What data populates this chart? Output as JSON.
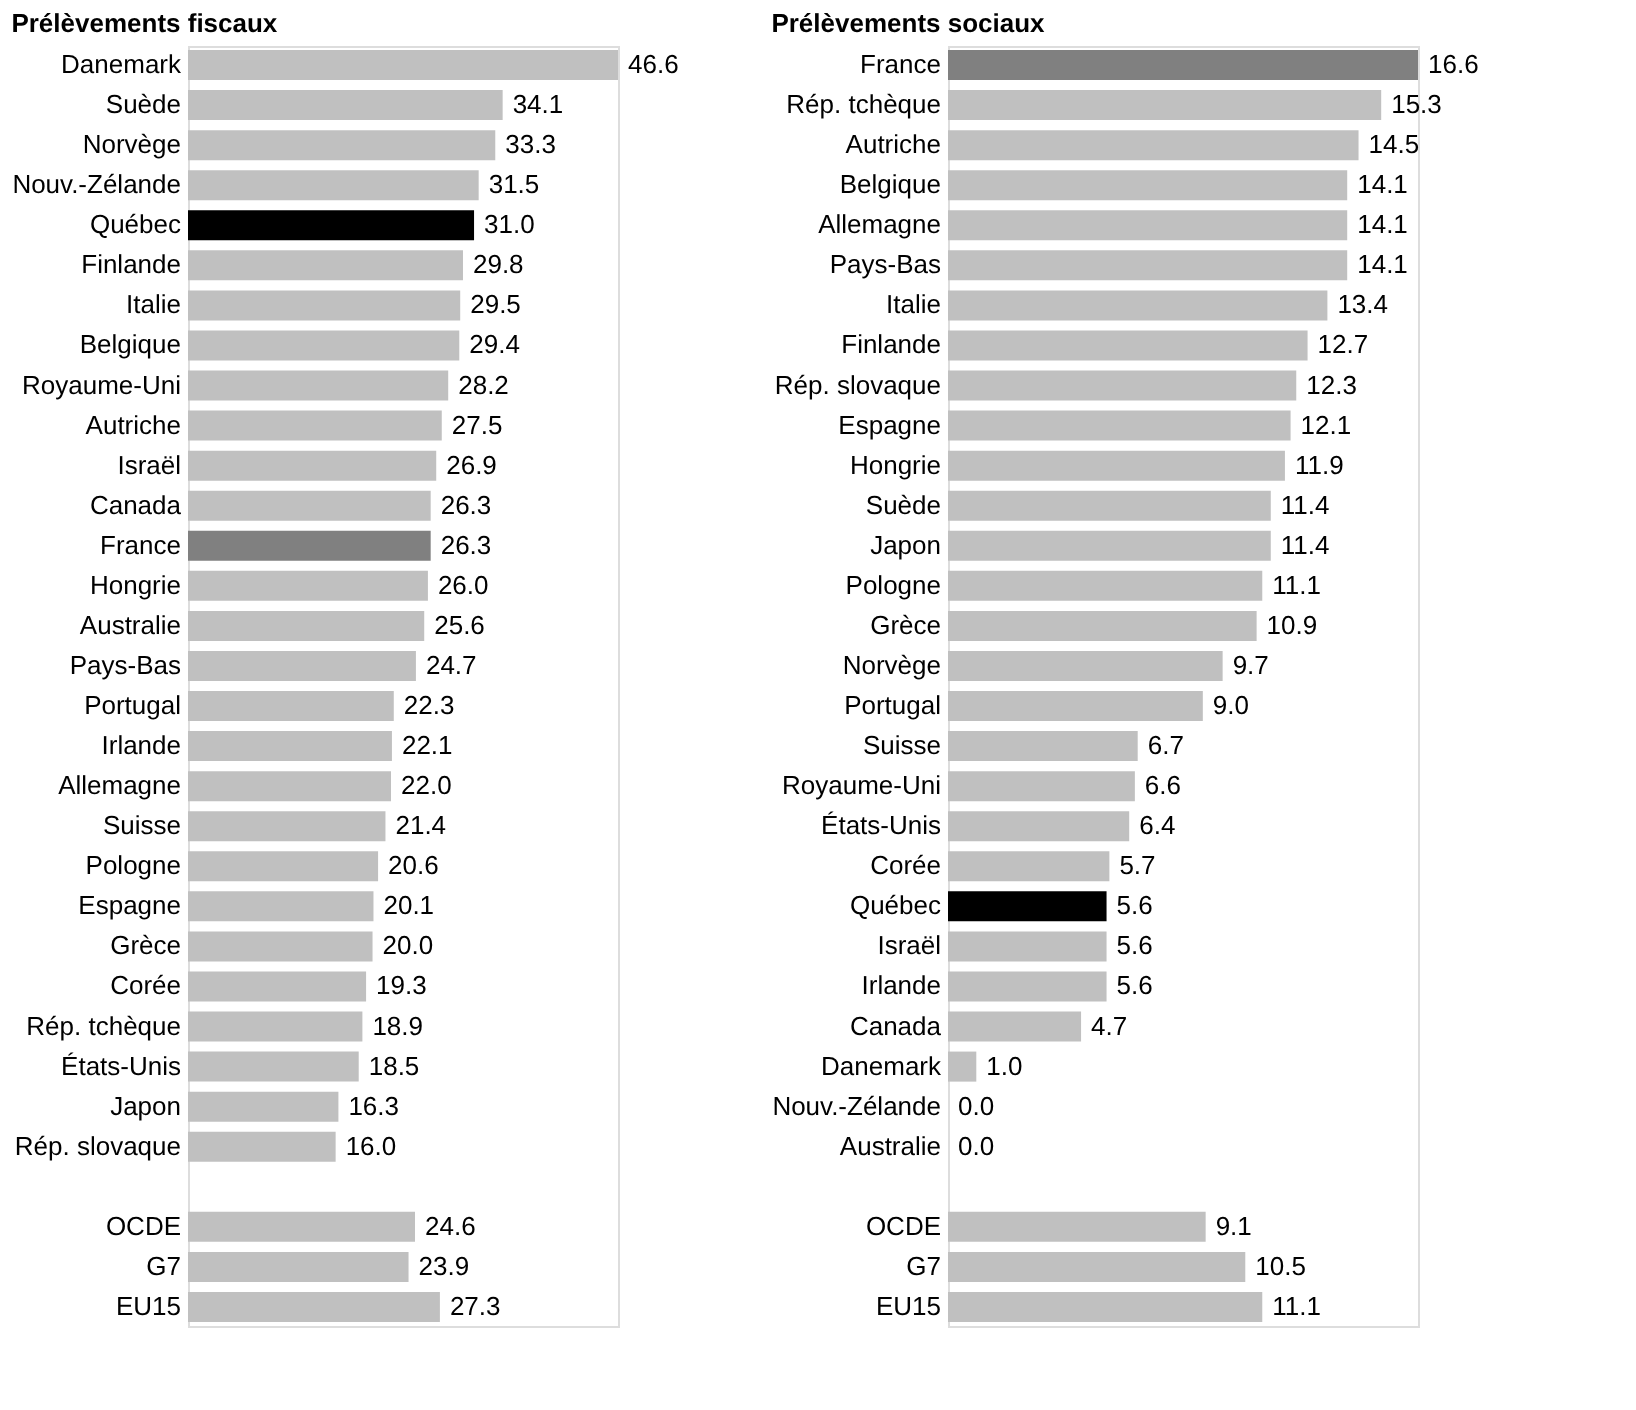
{
  "chart_data": [
    {
      "type": "bar",
      "orientation": "horizontal",
      "title": "Prélèvements fiscaux",
      "categories": [
        "Danemark",
        "Suède",
        "Norvège",
        "Nouv.-Zélande",
        "Québec",
        "Finlande",
        "Italie",
        "Belgique",
        "Royaume-Uni",
        "Autriche",
        "Israël",
        "Canada",
        "France",
        "Hongrie",
        "Australie",
        "Pays-Bas",
        "Portugal",
        "Irlande",
        "Allemagne",
        "Suisse",
        "Pologne",
        "Espagne",
        "Grèce",
        "Corée",
        "Rép. tchèque",
        "États-Unis",
        "Japon",
        "Rép. slovaque",
        null,
        "OCDE",
        "G7",
        "EU15"
      ],
      "values": [
        46.6,
        34.1,
        33.3,
        31.5,
        31.0,
        29.8,
        29.5,
        29.4,
        28.2,
        27.5,
        26.9,
        26.3,
        26.3,
        26.0,
        25.6,
        24.7,
        22.3,
        22.1,
        22.0,
        21.4,
        20.6,
        20.1,
        20.0,
        19.3,
        18.9,
        18.5,
        16.3,
        16.0,
        null,
        24.6,
        23.9,
        27.3
      ],
      "value_labels": [
        "46.6",
        "34.1",
        "33.3",
        "31.5",
        "31.0",
        "29.8",
        "29.5",
        "29.4",
        "28.2",
        "27.5",
        "26.9",
        "26.3",
        "26.3",
        "26.0",
        "25.6",
        "24.7",
        "22.3",
        "22.1",
        "22.0",
        "21.4",
        "20.6",
        "20.1",
        "20.0",
        "19.3",
        "18.9",
        "18.5",
        "16.3",
        "16.0",
        null,
        "24.6",
        "23.9",
        "27.3"
      ],
      "colors": [
        "#c0c0c0",
        "#c0c0c0",
        "#c0c0c0",
        "#c0c0c0",
        "#000000",
        "#c0c0c0",
        "#c0c0c0",
        "#c0c0c0",
        "#c0c0c0",
        "#c0c0c0",
        "#c0c0c0",
        "#c0c0c0",
        "#808080",
        "#c0c0c0",
        "#c0c0c0",
        "#c0c0c0",
        "#c0c0c0",
        "#c0c0c0",
        "#c0c0c0",
        "#c0c0c0",
        "#c0c0c0",
        "#c0c0c0",
        "#c0c0c0",
        "#c0c0c0",
        "#c0c0c0",
        "#c0c0c0",
        "#c0c0c0",
        "#c0c0c0",
        "#c0c0c0",
        "#c0c0c0",
        "#c0c0c0",
        "#c0c0c0"
      ]
    },
    {
      "type": "bar",
      "orientation": "horizontal",
      "title": "Prélèvements sociaux",
      "categories": [
        "France",
        "Rép. tchèque",
        "Autriche",
        "Belgique",
        "Allemagne",
        "Pays-Bas",
        "Italie",
        "Finlande",
        "Rép. slovaque",
        "Espagne",
        "Hongrie",
        "Suède",
        "Japon",
        "Pologne",
        "Grèce",
        "Norvège",
        "Portugal",
        "Suisse",
        "Royaume-Uni",
        "États-Unis",
        "Corée",
        "Québec",
        "Israël",
        "Irlande",
        "Canada",
        "Danemark",
        "Nouv.-Zélande",
        "Australie",
        null,
        "OCDE",
        "G7",
        "EU15"
      ],
      "values": [
        16.6,
        15.3,
        14.5,
        14.1,
        14.1,
        14.1,
        13.4,
        12.7,
        12.3,
        12.1,
        11.9,
        11.4,
        11.4,
        11.1,
        10.9,
        9.7,
        9.0,
        6.7,
        6.6,
        6.4,
        5.7,
        5.6,
        5.6,
        5.6,
        4.7,
        1.0,
        0.0,
        0.0,
        null,
        9.1,
        10.5,
        11.1
      ],
      "value_labels": [
        "16.6",
        "15.3",
        "14.5",
        "14.1",
        "14.1",
        "14.1",
        "13.4",
        "12.7",
        "12.3",
        "12.1",
        "11.9",
        "11.4",
        "11.4",
        "11.1",
        "10.9",
        "9.7",
        "9.0",
        "6.7",
        "6.6",
        "6.4",
        "5.7",
        "5.6",
        "5.6",
        "5.6",
        "4.7",
        "1.0",
        "0.0",
        "0.0",
        null,
        "9.1",
        "10.5",
        "11.1"
      ],
      "colors": [
        "#808080",
        "#c0c0c0",
        "#c0c0c0",
        "#c0c0c0",
        "#c0c0c0",
        "#c0c0c0",
        "#c0c0c0",
        "#c0c0c0",
        "#c0c0c0",
        "#c0c0c0",
        "#c0c0c0",
        "#c0c0c0",
        "#c0c0c0",
        "#c0c0c0",
        "#c0c0c0",
        "#c0c0c0",
        "#c0c0c0",
        "#c0c0c0",
        "#c0c0c0",
        "#c0c0c0",
        "#c0c0c0",
        "#000000",
        "#c0c0c0",
        "#c0c0c0",
        "#c0c0c0",
        "#c0c0c0",
        "#c0c0c0",
        "#c0c0c0",
        "#c0c0c0",
        "#c0c0c0",
        "#c0c0c0",
        "#c0c0c0"
      ]
    }
  ]
}
